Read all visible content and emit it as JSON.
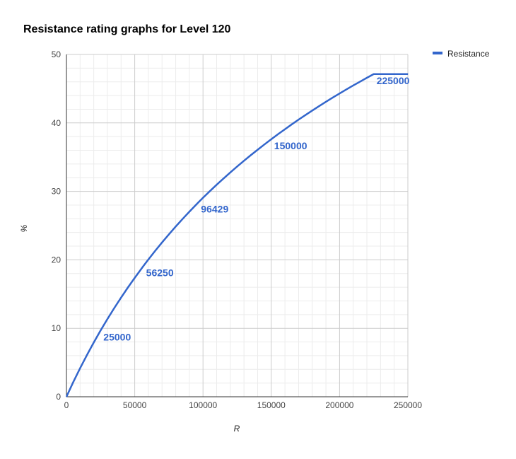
{
  "chart_data": {
    "type": "line",
    "title": "Resistance rating graphs for Level 120",
    "xlabel": "R",
    "ylabel": "%",
    "xlim": [
      0,
      250000
    ],
    "ylim": [
      0,
      50
    ],
    "x_ticks": [
      0,
      50000,
      100000,
      150000,
      200000,
      250000
    ],
    "y_ticks": [
      0,
      10,
      20,
      30,
      40,
      50
    ],
    "grid": true,
    "legend_position": "top-right",
    "series": [
      {
        "name": "Resistance",
        "color": "#3366cc",
        "x": [
          0,
          5000,
          10000,
          15000,
          20000,
          25000,
          30000,
          35000,
          40000,
          45000,
          50000,
          56250,
          60000,
          65000,
          70000,
          75000,
          80000,
          85000,
          90000,
          96429,
          100000,
          105000,
          110000,
          115000,
          120000,
          125000,
          130000,
          135000,
          140000,
          145000,
          150000,
          155000,
          160000,
          165000,
          170000,
          175000,
          180000,
          185000,
          190000,
          195000,
          200000,
          205000,
          210000,
          215000,
          220000,
          225000,
          230000,
          240000,
          250000
        ],
        "y": [
          0,
          2.15,
          4.17,
          6.09,
          7.93,
          9.68,
          11.35,
          12.95,
          14.48,
          15.96,
          17.37,
          19.07,
          20.05,
          21.32,
          22.54,
          23.72,
          24.86,
          25.96,
          27.03,
          28.36,
          29.07,
          30.03,
          30.97,
          31.88,
          32.77,
          33.63,
          34.47,
          35.29,
          36.08,
          36.86,
          37.62,
          38.36,
          39.08,
          39.79,
          40.48,
          41.15,
          41.81,
          42.45,
          43.08,
          43.7,
          44.3,
          44.89,
          45.47,
          46.03,
          46.59,
          47.13,
          47.13,
          47.13,
          47.13
        ]
      }
    ],
    "annotations": [
      {
        "x": 25000,
        "y": 9.68,
        "label": "25000"
      },
      {
        "x": 56250,
        "y": 19.07,
        "label": "56250"
      },
      {
        "x": 96429,
        "y": 28.36,
        "label": "96429"
      },
      {
        "x": 150000,
        "y": 37.62,
        "label": "150000"
      },
      {
        "x": 225000,
        "y": 47.13,
        "label": "225000"
      }
    ]
  }
}
